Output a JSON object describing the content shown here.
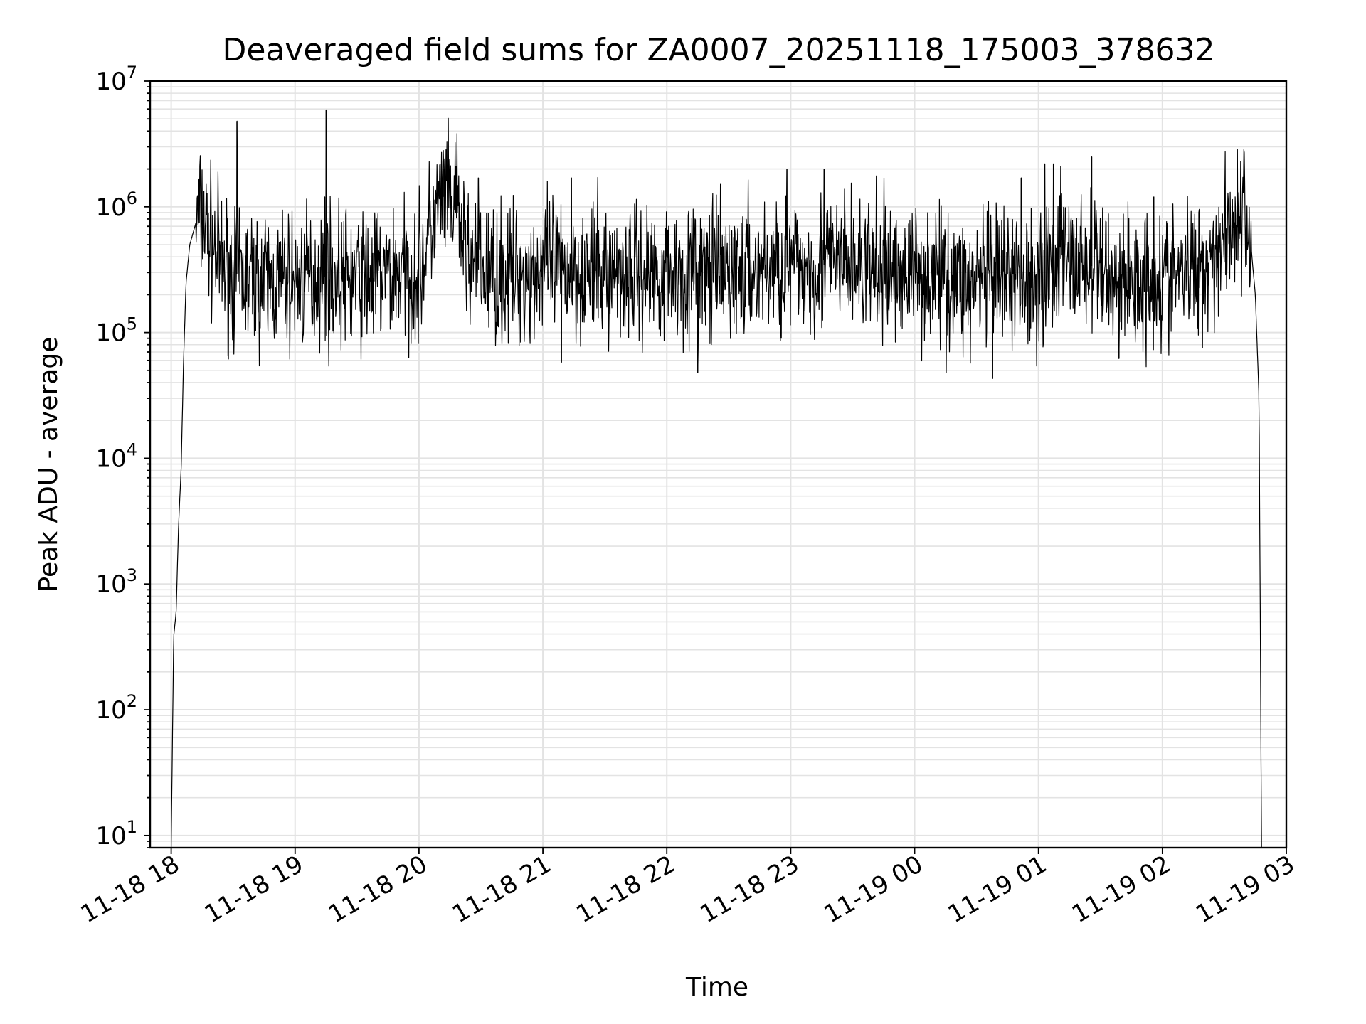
{
  "chart_data": {
    "type": "line",
    "title": "Deaveraged field sums for ZA0007_20251118_175003_378632",
    "xlabel": "Time",
    "ylabel": "Peak ADU - average",
    "yscale": "log",
    "ylim": [
      8,
      10000000
    ],
    "xlim_hours": [
      17.83,
      27.0
    ],
    "grid": true,
    "y_ticks": [
      {
        "base": "10",
        "exp": "1",
        "value": 10
      },
      {
        "base": "10",
        "exp": "2",
        "value": 100
      },
      {
        "base": "10",
        "exp": "3",
        "value": 1000
      },
      {
        "base": "10",
        "exp": "4",
        "value": 10000
      },
      {
        "base": "10",
        "exp": "5",
        "value": 100000
      },
      {
        "base": "10",
        "exp": "6",
        "value": 1000000
      },
      {
        "base": "10",
        "exp": "7",
        "value": 10000000
      }
    ],
    "x_ticks": [
      {
        "label": "11-18 18",
        "hour": 18
      },
      {
        "label": "11-18 19",
        "hour": 19
      },
      {
        "label": "11-18 20",
        "hour": 20
      },
      {
        "label": "11-18 21",
        "hour": 21
      },
      {
        "label": "11-18 22",
        "hour": 22
      },
      {
        "label": "11-18 23",
        "hour": 23
      },
      {
        "label": "11-19 00",
        "hour": 24
      },
      {
        "label": "11-19 01",
        "hour": 25
      },
      {
        "label": "11-19 02",
        "hour": 26
      },
      {
        "label": "11-19 03",
        "hour": 27
      }
    ],
    "series": [
      {
        "name": "Peak ADU - average",
        "color": "#000000",
        "x_hours": [
          18.0,
          18.02,
          18.04,
          18.06,
          18.08,
          18.1,
          18.12,
          18.15,
          18.2,
          18.25,
          18.3,
          18.4,
          18.5,
          18.6,
          18.7,
          18.8,
          19.0,
          19.2,
          19.4,
          19.6,
          19.8,
          20.0,
          20.1,
          20.2,
          20.3,
          20.4,
          20.5,
          20.7,
          20.9,
          21.0,
          21.2,
          21.4,
          21.6,
          21.8,
          22.0,
          22.2,
          22.4,
          22.6,
          22.8,
          23.0,
          23.2,
          23.4,
          23.6,
          23.8,
          24.0,
          24.2,
          24.4,
          24.6,
          24.8,
          25.0,
          25.2,
          25.4,
          25.6,
          25.8,
          26.0,
          26.2,
          26.4,
          26.5,
          26.6,
          26.7,
          26.75,
          26.78,
          26.8
        ],
        "y": [
          8,
          380,
          600,
          3000,
          8000,
          60000,
          250000,
          500000,
          750000,
          850000,
          600000,
          350000,
          300000,
          270000,
          260000,
          250000,
          260000,
          280000,
          270000,
          270000,
          300000,
          280000,
          700000,
          1200000,
          900000,
          400000,
          300000,
          280000,
          300000,
          320000,
          330000,
          300000,
          310000,
          300000,
          310000,
          300000,
          290000,
          310000,
          320000,
          330000,
          340000,
          360000,
          330000,
          300000,
          310000,
          280000,
          260000,
          250000,
          260000,
          280000,
          400000,
          350000,
          280000,
          260000,
          270000,
          300000,
          400000,
          600000,
          850000,
          700000,
          200000,
          30000,
          8
        ],
        "spikes": [
          {
            "hour": 18.53,
            "value": 4800000
          },
          {
            "hour": 19.25,
            "value": 5900000
          },
          {
            "hour": 19.24,
            "value": 1200000
          },
          {
            "hour": 20.17,
            "value": 2200000
          },
          {
            "hour": 20.2,
            "value": 2000000
          },
          {
            "hour": 20.3,
            "value": 2100000
          },
          {
            "hour": 20.48,
            "value": 1700000
          },
          {
            "hour": 21.23,
            "value": 1700000
          },
          {
            "hour": 22.97,
            "value": 2000000
          },
          {
            "hour": 23.27,
            "value": 2000000
          },
          {
            "hour": 24.86,
            "value": 1700000
          },
          {
            "hour": 25.05,
            "value": 2200000
          },
          {
            "hour": 25.12,
            "value": 2200000
          },
          {
            "hour": 25.18,
            "value": 2100000
          },
          {
            "hour": 25.43,
            "value": 2500000
          },
          {
            "hour": 25.93,
            "value": 1200000
          }
        ],
        "dips": [
          {
            "hour": 21.15,
            "value": 58000
          },
          {
            "hour": 22.25,
            "value": 48000
          },
          {
            "hour": 24.45,
            "value": 57000
          },
          {
            "hour": 24.63,
            "value": 43000
          },
          {
            "hour": 25.65,
            "value": 62000
          }
        ]
      }
    ]
  }
}
